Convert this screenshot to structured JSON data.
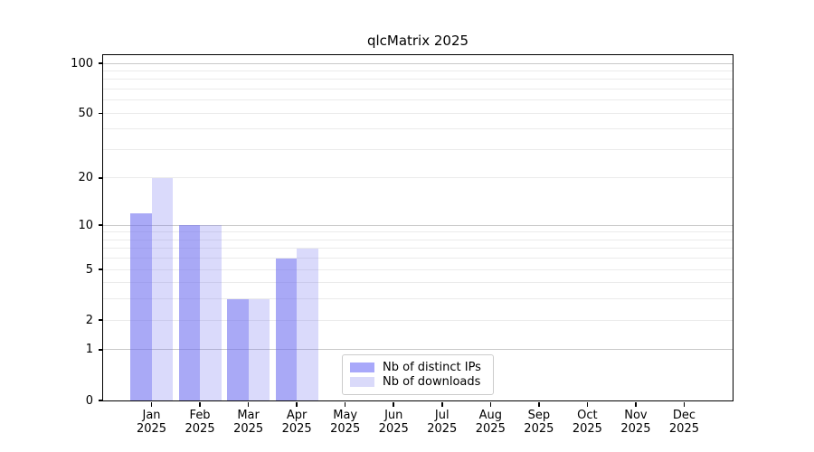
{
  "title": "qlcMatrix 2025",
  "chart_data": {
    "type": "bar",
    "title": "qlcMatrix 2025",
    "y_scale": "log1p",
    "ylim": [
      0,
      112
    ],
    "y_ticks": [
      0,
      1,
      2,
      5,
      10,
      20,
      50,
      100
    ],
    "grid": "horizontal",
    "grid_major_values": [
      1,
      10,
      100
    ],
    "grid_minor_values": [
      2,
      3,
      4,
      5,
      6,
      7,
      8,
      9,
      20,
      30,
      40,
      50,
      60,
      70,
      80,
      90
    ],
    "categories": [
      {
        "month": "Jan",
        "year": "2025"
      },
      {
        "month": "Feb",
        "year": "2025"
      },
      {
        "month": "Mar",
        "year": "2025"
      },
      {
        "month": "Apr",
        "year": "2025"
      },
      {
        "month": "May",
        "year": "2025"
      },
      {
        "month": "Jun",
        "year": "2025"
      },
      {
        "month": "Jul",
        "year": "2025"
      },
      {
        "month": "Aug",
        "year": "2025"
      },
      {
        "month": "Sep",
        "year": "2025"
      },
      {
        "month": "Oct",
        "year": "2025"
      },
      {
        "month": "Nov",
        "year": "2025"
      },
      {
        "month": "Dec",
        "year": "2025"
      }
    ],
    "series": [
      {
        "name": "Nb of distinct IPs",
        "key": "distinct-ips",
        "color_hex": "#a8a8fa",
        "fill_rgba": "rgba(106,106,240,0.58)",
        "values": [
          12,
          10,
          3,
          6,
          null,
          null,
          null,
          null,
          null,
          null,
          null,
          null
        ]
      },
      {
        "name": "Nb of downloads",
        "key": "downloads",
        "color_hex": "#dadafa",
        "fill_rgba": "rgba(106,106,240,0.25)",
        "values": [
          20,
          10,
          3,
          7,
          null,
          null,
          null,
          null,
          null,
          null,
          null,
          null
        ]
      }
    ],
    "legend_position": "lower center"
  },
  "colors": {
    "background": "#ffffff",
    "axis": "#000000",
    "grid_major": "#c9c9c9",
    "grid_minor": "#ebebeb",
    "legend_border": "#cccccc",
    "text": "#000000"
  }
}
